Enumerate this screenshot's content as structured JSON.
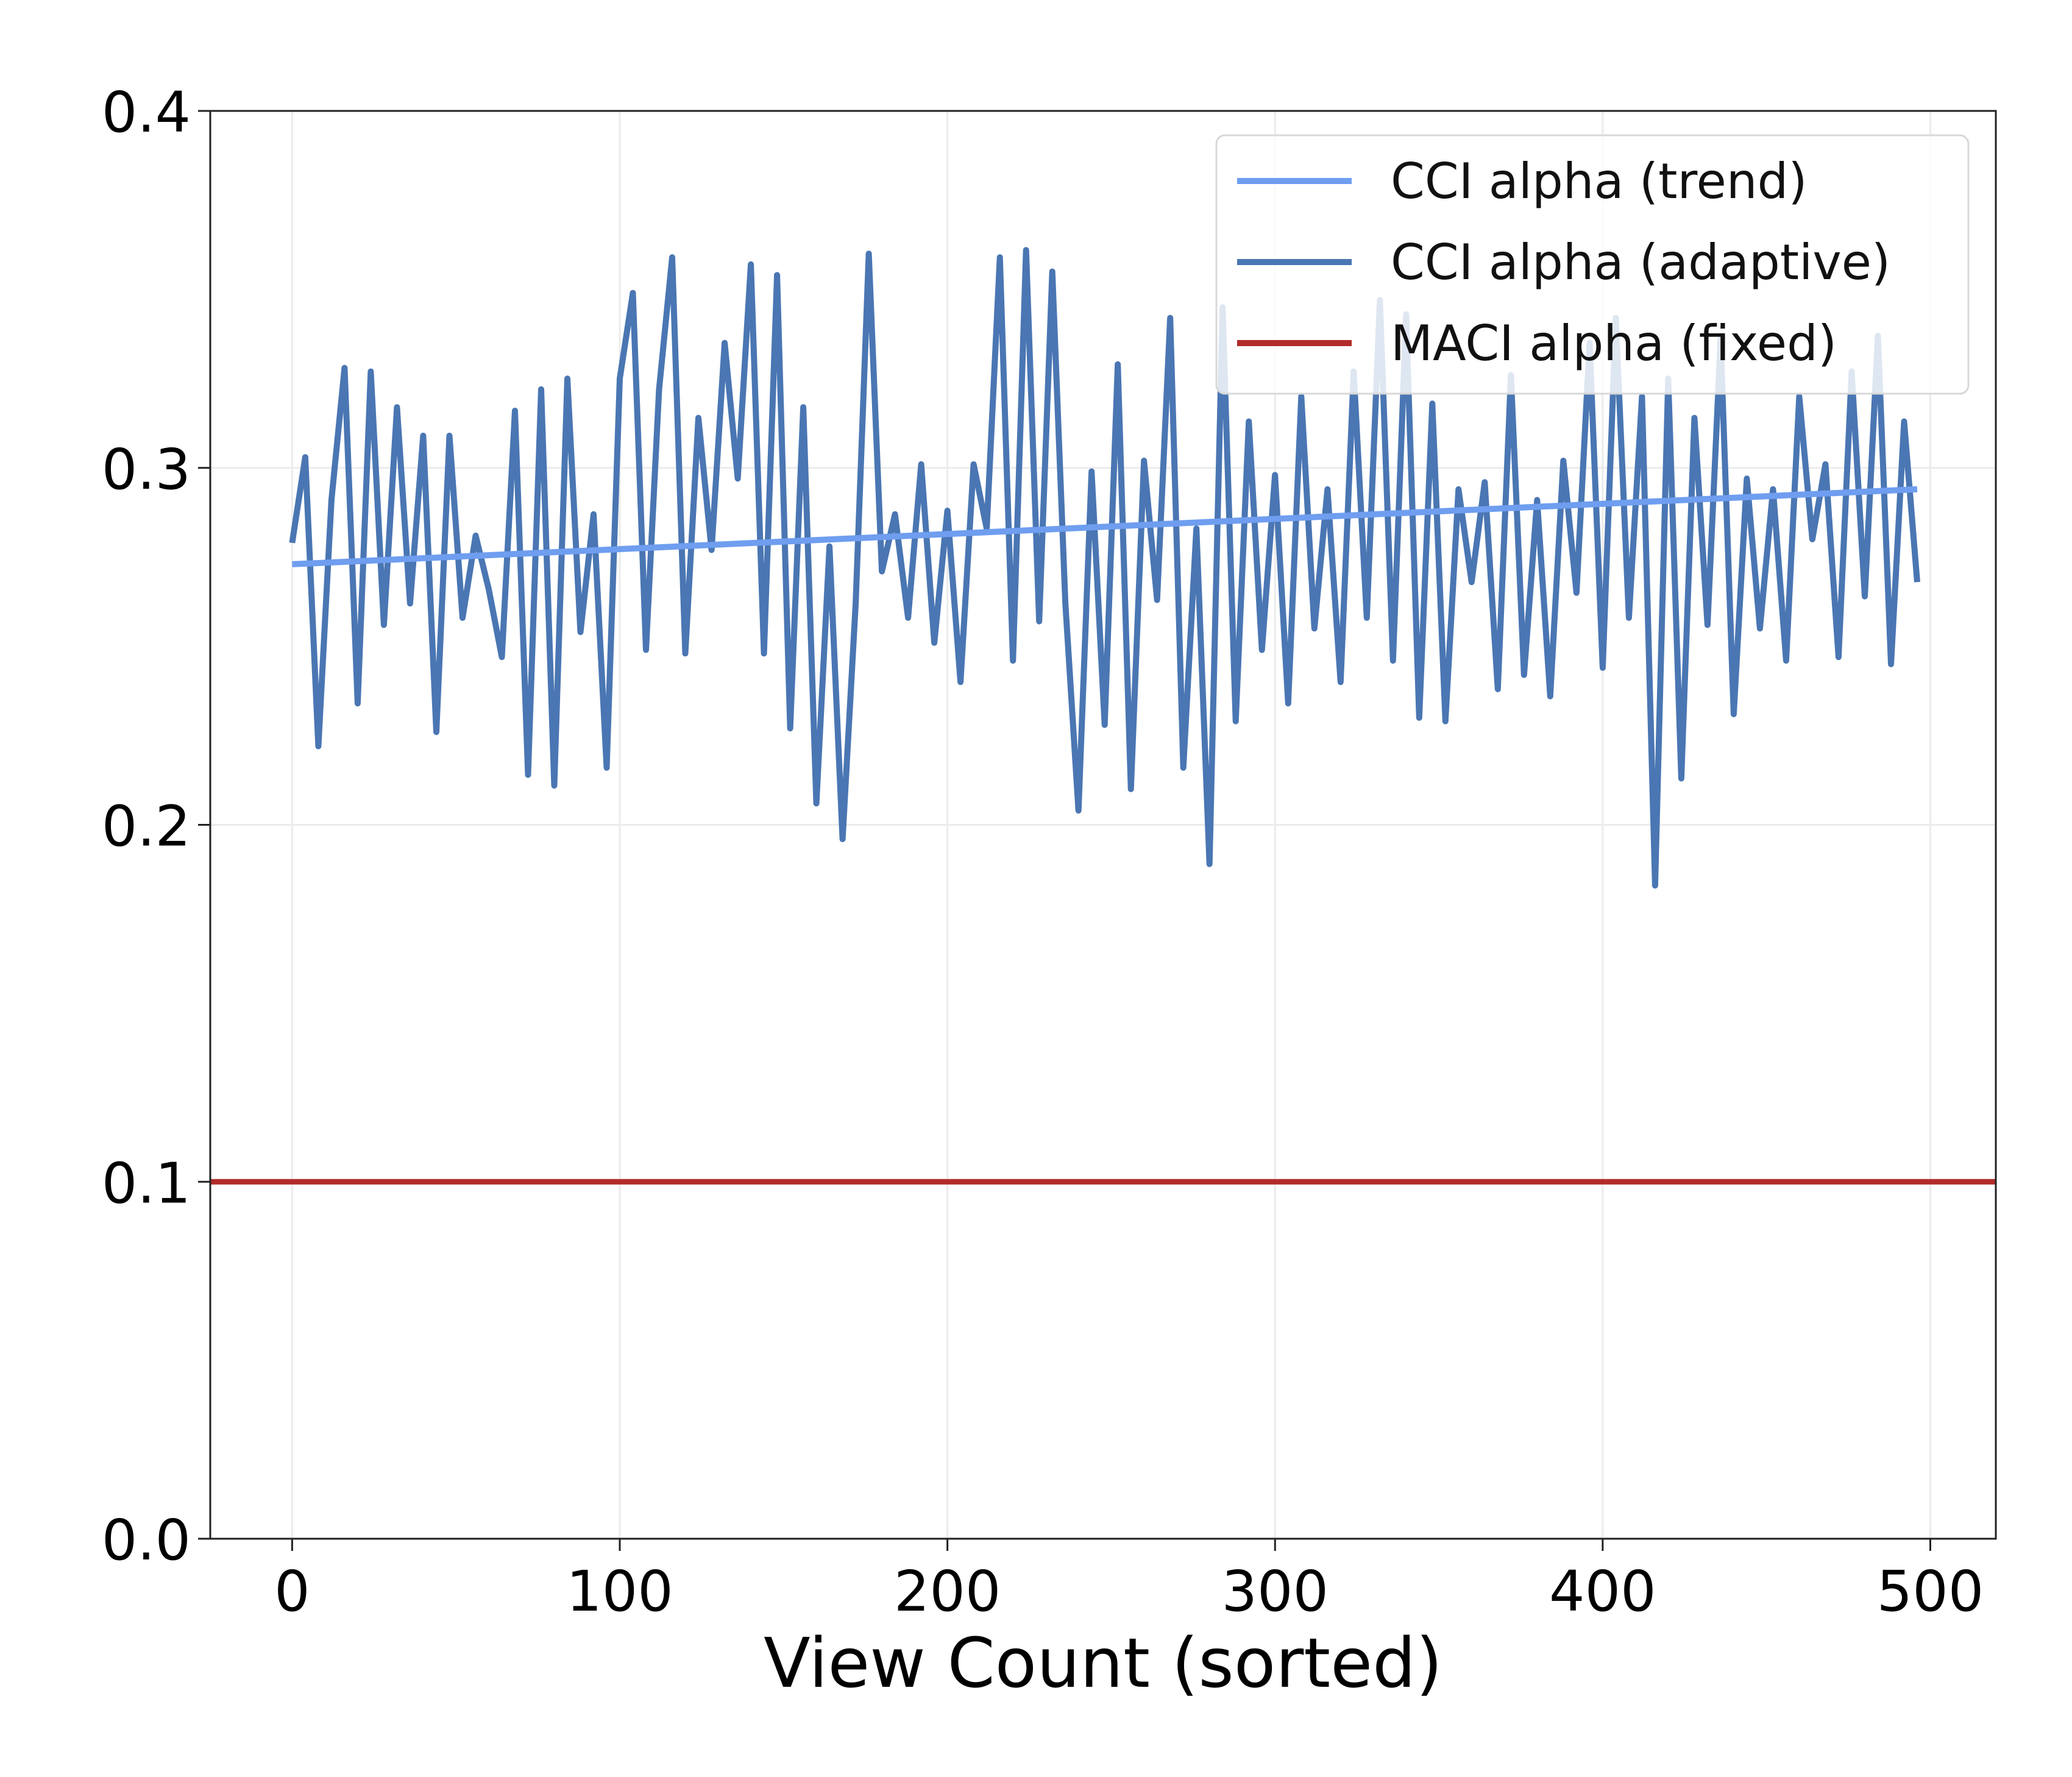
{
  "chart_data": {
    "type": "line",
    "title": "",
    "xlabel": "View Count (sorted)",
    "ylabel": "",
    "xlim": [
      -25,
      520
    ],
    "ylim": [
      0.0,
      0.4
    ],
    "x_ticks": [
      0,
      100,
      200,
      300,
      400,
      500
    ],
    "y_ticks": [
      0.0,
      0.1,
      0.2,
      0.3,
      0.4
    ],
    "x_tick_labels": [
      "0",
      "100",
      "200",
      "300",
      "400",
      "500"
    ],
    "y_tick_labels": [
      "0.0",
      "0.1",
      "0.2",
      "0.3",
      "0.4"
    ],
    "grid": true,
    "legend_position": "top-right",
    "series": [
      {
        "name": "CCI alpha (trend)",
        "color": "#6f9ef0",
        "x": [
          0,
          496
        ],
        "y": [
          0.273,
          0.294
        ]
      },
      {
        "name": "CCI alpha (adaptive)",
        "color": "#4a76b3",
        "x": [
          0,
          4,
          8,
          12,
          16,
          20,
          24,
          28,
          32,
          36,
          40,
          44,
          48,
          52,
          56,
          60,
          64,
          68,
          72,
          76,
          80,
          84,
          88,
          92,
          96,
          100,
          104,
          108,
          112,
          116,
          120,
          124,
          128,
          132,
          136,
          140,
          144,
          148,
          152,
          156,
          160,
          164,
          168,
          172,
          176,
          180,
          184,
          188,
          192,
          196,
          200,
          204,
          208,
          212,
          216,
          220,
          224,
          228,
          232,
          236,
          240,
          244,
          248,
          252,
          256,
          260,
          264,
          268,
          272,
          276,
          280,
          284,
          288,
          292,
          296,
          300,
          304,
          308,
          312,
          316,
          320,
          324,
          328,
          332,
          336,
          340,
          344,
          348,
          352,
          356,
          360,
          364,
          368,
          372,
          376,
          380,
          384,
          388,
          392,
          396,
          400,
          404,
          408,
          412,
          416,
          420,
          424,
          428,
          432,
          436,
          440,
          444,
          448,
          452,
          456,
          460,
          464,
          468,
          472,
          476,
          480,
          484,
          488,
          492,
          496
        ],
        "y": [
          0.279,
          0.303,
          0.222,
          0.291,
          0.328,
          0.234,
          0.327,
          0.256,
          0.317,
          0.262,
          0.309,
          0.226,
          0.309,
          0.258,
          0.281,
          0.266,
          0.247,
          0.316,
          0.214,
          0.322,
          0.211,
          0.325,
          0.254,
          0.287,
          0.216,
          0.325,
          0.349,
          0.249,
          0.322,
          0.359,
          0.248,
          0.314,
          0.277,
          0.335,
          0.297,
          0.357,
          0.248,
          0.354,
          0.227,
          0.317,
          0.206,
          0.278,
          0.196,
          0.262,
          0.36,
          0.271,
          0.287,
          0.258,
          0.301,
          0.251,
          0.288,
          0.24,
          0.301,
          0.283,
          0.359,
          0.246,
          0.361,
          0.257,
          0.355,
          0.262,
          0.204,
          0.299,
          0.228,
          0.329,
          0.21,
          0.302,
          0.263,
          0.342,
          0.216,
          0.283,
          0.189,
          0.345,
          0.229,
          0.313,
          0.249,
          0.298,
          0.234,
          0.32,
          0.255,
          0.294,
          0.24,
          0.327,
          0.258,
          0.347,
          0.246,
          0.343,
          0.23,
          0.318,
          0.229,
          0.294,
          0.268,
          0.296,
          0.238,
          0.326,
          0.242,
          0.291,
          0.236,
          0.302,
          0.265,
          0.335,
          0.244,
          0.342,
          0.258,
          0.32,
          0.183,
          0.325,
          0.213,
          0.314,
          0.256,
          0.336,
          0.231,
          0.297,
          0.255,
          0.294,
          0.246,
          0.32,
          0.28,
          0.301,
          0.247,
          0.327,
          0.264,
          0.337,
          0.245,
          0.313,
          0.268
        ]
      },
      {
        "name": "MACI alpha (fixed)",
        "color": "#b22b2b",
        "x": [
          -25,
          520
        ],
        "y": [
          0.1,
          0.1
        ]
      }
    ]
  }
}
